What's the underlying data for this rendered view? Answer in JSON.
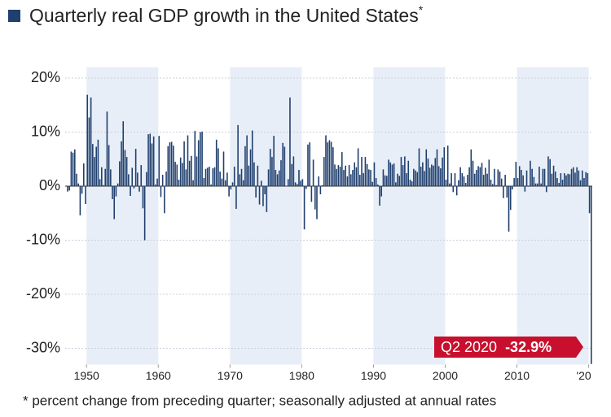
{
  "chart_data": {
    "type": "bar",
    "title": "Quarterly real GDP growth in the United States",
    "title_mark": "*",
    "footnote": "* percent change from preceding quarter; seasonally adjusted at annual rates",
    "annotation": {
      "period": "Q2 2020",
      "text": "-32.9%"
    },
    "color": "#1f3f6e",
    "band_color": "#e8eef7",
    "annotation_color": "#c8102e",
    "bands": [
      [
        1950,
        1960
      ],
      [
        1970,
        1980
      ],
      [
        1990,
        2000
      ],
      [
        2010,
        2020
      ]
    ],
    "xlim": [
      1947.25,
      2020.5
    ],
    "xticks": [
      1950,
      1960,
      1970,
      1980,
      1990,
      2000,
      2010,
      {
        "value": 2020,
        "label": "'20"
      }
    ],
    "ylim": [
      -33,
      22
    ],
    "yticks": [
      {
        "value": 20,
        "label": "20%"
      },
      {
        "value": 10,
        "label": "10%"
      },
      {
        "value": 0,
        "label": "0%"
      },
      {
        "value": -10,
        "label": "-10%"
      },
      {
        "value": -20,
        "label": "-20%"
      },
      {
        "value": -30,
        "label": "-30%"
      }
    ],
    "grid": true,
    "x": [
      1947.25,
      1947.5,
      1947.75,
      1948,
      1948.25,
      1948.5,
      1948.75,
      1949,
      1949.25,
      1949.5,
      1949.75,
      1950,
      1950.25,
      1950.5,
      1950.75,
      1951,
      1951.25,
      1951.5,
      1951.75,
      1952,
      1952.25,
      1952.5,
      1952.75,
      1953,
      1953.25,
      1953.5,
      1953.75,
      1954,
      1954.25,
      1954.5,
      1954.75,
      1955,
      1955.25,
      1955.5,
      1955.75,
      1956,
      1956.25,
      1956.5,
      1956.75,
      1957,
      1957.25,
      1957.5,
      1957.75,
      1958,
      1958.25,
      1958.5,
      1958.75,
      1959,
      1959.25,
      1959.5,
      1959.75,
      1960,
      1960.25,
      1960.5,
      1960.75,
      1961,
      1961.25,
      1961.5,
      1961.75,
      1962,
      1962.25,
      1962.5,
      1962.75,
      1963,
      1963.25,
      1963.5,
      1963.75,
      1964,
      1964.25,
      1964.5,
      1964.75,
      1965,
      1965.25,
      1965.5,
      1965.75,
      1966,
      1966.25,
      1966.5,
      1966.75,
      1967,
      1967.25,
      1967.5,
      1967.75,
      1968,
      1968.25,
      1968.5,
      1968.75,
      1969,
      1969.25,
      1969.5,
      1969.75,
      1970,
      1970.25,
      1970.5,
      1970.75,
      1971,
      1971.25,
      1971.5,
      1971.75,
      1972,
      1972.25,
      1972.5,
      1972.75,
      1973,
      1973.25,
      1973.5,
      1973.75,
      1974,
      1974.25,
      1974.5,
      1974.75,
      1975,
      1975.25,
      1975.5,
      1975.75,
      1976,
      1976.25,
      1976.5,
      1976.75,
      1977,
      1977.25,
      1977.5,
      1977.75,
      1978,
      1978.25,
      1978.5,
      1978.75,
      1979,
      1979.25,
      1979.5,
      1979.75,
      1980,
      1980.25,
      1980.5,
      1980.75,
      1981,
      1981.25,
      1981.5,
      1981.75,
      1982,
      1982.25,
      1982.5,
      1982.75,
      1983,
      1983.25,
      1983.5,
      1983.75,
      1984,
      1984.25,
      1984.5,
      1984.75,
      1985,
      1985.25,
      1985.5,
      1985.75,
      1986,
      1986.25,
      1986.5,
      1986.75,
      1987,
      1987.25,
      1987.5,
      1987.75,
      1988,
      1988.25,
      1988.5,
      1988.75,
      1989,
      1989.25,
      1989.5,
      1989.75,
      1990,
      1990.25,
      1990.5,
      1990.75,
      1991,
      1991.25,
      1991.5,
      1991.75,
      1992,
      1992.25,
      1992.5,
      1992.75,
      1993,
      1993.25,
      1993.5,
      1993.75,
      1994,
      1994.25,
      1994.5,
      1994.75,
      1995,
      1995.25,
      1995.5,
      1995.75,
      1996,
      1996.25,
      1996.5,
      1996.75,
      1997,
      1997.25,
      1997.5,
      1997.75,
      1998,
      1998.25,
      1998.5,
      1998.75,
      1999,
      1999.25,
      1999.5,
      1999.75,
      2000,
      2000.25,
      2000.5,
      2000.75,
      2001,
      2001.25,
      2001.5,
      2001.75,
      2002,
      2002.25,
      2002.5,
      2002.75,
      2003,
      2003.25,
      2003.5,
      2003.75,
      2004,
      2004.25,
      2004.5,
      2004.75,
      2005,
      2005.25,
      2005.5,
      2005.75,
      2006,
      2006.25,
      2006.5,
      2006.75,
      2007,
      2007.25,
      2007.5,
      2007.75,
      2008,
      2008.25,
      2008.5,
      2008.75,
      2009,
      2009.25,
      2009.5,
      2009.75,
      2010,
      2010.25,
      2010.5,
      2010.75,
      2011,
      2011.25,
      2011.5,
      2011.75,
      2012,
      2012.25,
      2012.5,
      2012.75,
      2013,
      2013.25,
      2013.5,
      2013.75,
      2014,
      2014.25,
      2014.5,
      2014.75,
      2015,
      2015.25,
      2015.5,
      2015.75,
      2016,
      2016.25,
      2016.5,
      2016.75,
      2017,
      2017.25,
      2017.5,
      2017.75,
      2018,
      2018.25,
      2018.5,
      2018.75,
      2019,
      2019.25,
      2019.5,
      2019.75,
      2020,
      2020.25
    ],
    "values": [
      -1.0,
      -0.8,
      6.4,
      6.2,
      6.8,
      2.3,
      0.5,
      -5.4,
      -1.4,
      4.2,
      -3.3,
      16.9,
      12.7,
      16.4,
      7.8,
      5.4,
      7.3,
      8.6,
      1.3,
      3.5,
      0.2,
      3.2,
      13.8,
      7.6,
      3.1,
      -2.4,
      -6.1,
      -1.9,
      0.5,
      4.6,
      8.3,
      12.0,
      6.7,
      5.4,
      2.2,
      -1.8,
      3.4,
      -0.4,
      6.9,
      2.5,
      -1.0,
      3.9,
      -4.1,
      -10.0,
      2.6,
      9.6,
      9.7,
      7.9,
      9.2,
      0.3,
      1.4,
      9.3,
      -2.0,
      2.1,
      -5.0,
      2.7,
      7.4,
      8.1,
      8.2,
      7.5,
      4.5,
      4.0,
      1.2,
      5.3,
      4.3,
      8.3,
      3.1,
      9.4,
      4.7,
      5.6,
      1.1,
      10.2,
      5.5,
      8.5,
      10.0,
      10.1,
      1.5,
      3.2,
      3.4,
      3.6,
      0.3,
      3.3,
      3.5,
      8.6,
      7.0,
      2.7,
      1.4,
      6.4,
      1.1,
      2.5,
      -1.9,
      -0.6,
      0.7,
      3.6,
      -4.2,
      11.3,
      2.2,
      3.2,
      1.1,
      7.4,
      9.4,
      3.8,
      6.8,
      10.3,
      4.4,
      -2.1,
      3.8,
      -3.4,
      1.0,
      -3.7,
      -1.5,
      -4.8,
      3.1,
      6.9,
      5.4,
      9.3,
      3.0,
      2.2,
      2.9,
      4.8,
      8.0,
      7.3,
      0.0,
      1.3,
      16.4,
      4.1,
      5.5,
      0.7,
      0.4,
      3.0,
      1.0,
      1.3,
      -8.0,
      -0.5,
      7.7,
      8.1,
      -2.9,
      4.9,
      -4.3,
      -6.1,
      1.8,
      -1.5,
      0.2,
      5.4,
      9.4,
      8.1,
      8.5,
      8.2,
      7.2,
      4.0,
      3.2,
      3.9,
      3.6,
      6.3,
      3.0,
      3.8,
      1.8,
      3.9,
      2.2,
      3.0,
      4.4,
      3.5,
      7.0,
      2.1,
      5.4,
      2.4,
      5.4,
      4.1,
      3.1,
      3.0,
      0.8,
      4.4,
      1.5,
      0.3,
      -3.6,
      -1.9,
      3.1,
      2.0,
      1.9,
      4.9,
      4.4,
      4.0,
      4.2,
      0.7,
      2.3,
      1.9,
      5.4,
      3.9,
      5.5,
      2.4,
      4.7,
      1.2,
      0.9,
      3.2,
      2.9,
      2.6,
      7.0,
      3.6,
      4.4,
      2.8,
      6.8,
      5.1,
      3.4,
      4.0,
      3.8,
      5.2,
      6.8,
      3.7,
      3.3,
      5.3,
      7.2,
      1.2,
      7.5,
      0.5,
      2.4,
      -1.1,
      2.4,
      -1.7,
      1.1,
      3.5,
      2.4,
      1.8,
      0.6,
      2.1,
      3.5,
      6.8,
      4.7,
      2.3,
      3.0,
      3.7,
      3.5,
      4.3,
      2.1,
      3.4,
      2.3,
      4.9,
      1.2,
      0.4,
      3.2,
      0.2,
      3.1,
      2.7,
      1.4,
      -2.2,
      2.1,
      -2.1,
      -8.4,
      -4.4,
      -0.6,
      1.5,
      4.5,
      1.5,
      3.7,
      3.0,
      2.0,
      -1.0,
      2.9,
      -0.1,
      4.7,
      3.2,
      1.7,
      0.5,
      0.5,
      3.6,
      0.5,
      3.2,
      3.2,
      -1.1,
      5.5,
      5.0,
      2.3,
      3.8,
      2.7,
      1.5,
      0.6,
      2.4,
      1.2,
      2.4,
      2.0,
      2.3,
      2.2,
      3.2,
      3.5,
      2.5,
      3.5,
      2.9,
      1.1,
      2.9,
      1.5,
      2.6,
      2.4,
      -5.0,
      -32.9
    ]
  }
}
